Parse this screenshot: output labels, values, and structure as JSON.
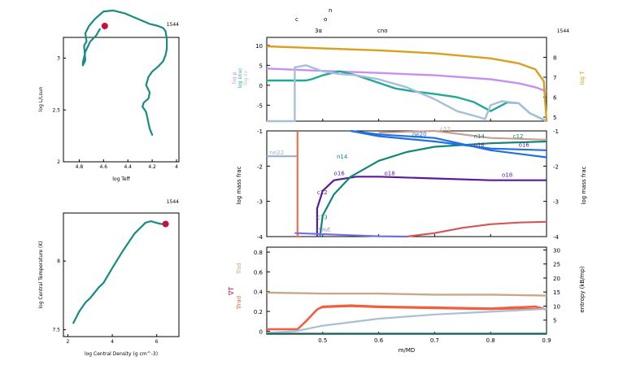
{
  "model_number": "1544",
  "colors": {
    "track": "#1a8a85",
    "marker": "#c8103a",
    "log_rho": "#c690f0",
    "log_eps_nuc": "#20a89a",
    "log_eps_nu": "#a8bfd8",
    "log_T": "#d8a020",
    "n14": "#12857a",
    "o16": "#5a1a9a",
    "ne22": "#9ab0d0",
    "c12": "#c8a090",
    "c13": "#d05858",
    "neut": "#7070e0",
    "blue_lines": "#2070e0",
    "h1": "#f07050",
    "grad_ad": "#c8a888",
    "grad_rad": "#f06040",
    "entropy": "#a8bfd8"
  },
  "top_labels": {
    "c": "c",
    "o": "o",
    "n": "n",
    "three_alpha": "3α",
    "cno": "cno"
  },
  "chart_data": [
    {
      "id": "hr",
      "type": "line",
      "title": "1544",
      "xlabel": "log Teff",
      "ylabel": "log L/Lsun",
      "xlim": [
        3.98,
        4.93
      ],
      "ylim": [
        2.0,
        3.2
      ],
      "xticks": [
        "4.8",
        "4.6",
        "4.4",
        "4.2",
        "4"
      ],
      "yticks": [
        "2",
        "2.5",
        "3",
        "3.5"
      ],
      "series": [
        {
          "x": [
            4.63,
            4.66,
            4.71,
            4.75,
            4.77,
            4.77,
            4.75,
            4.76,
            4.74,
            4.75,
            4.72,
            4.67,
            4.6,
            4.52,
            4.42,
            4.32,
            4.22,
            4.15,
            4.11,
            4.09,
            4.08,
            4.08,
            4.09,
            4.11,
            4.15,
            4.2,
            4.23,
            4.25,
            4.22,
            4.23,
            4.27,
            4.28,
            4.26,
            4.25,
            4.24,
            4.23,
            4.22,
            4.2
          ],
          "y": [
            3.28,
            3.22,
            3.16,
            3.06,
            2.96,
            2.93,
            2.98,
            3.12,
            3.16,
            3.24,
            3.31,
            3.38,
            3.45,
            3.46,
            3.43,
            3.38,
            3.33,
            3.31,
            3.29,
            3.26,
            3.18,
            3.09,
            3.03,
            2.97,
            2.92,
            2.87,
            2.82,
            2.74,
            2.67,
            2.61,
            2.57,
            2.53,
            2.5,
            2.48,
            2.43,
            2.37,
            2.32,
            2.26
          ]
        }
      ],
      "marker": {
        "x": 4.59,
        "y": 3.31
      }
    },
    {
      "id": "rhoT",
      "type": "line",
      "title": "1544",
      "xlabel": "log Central Density (g cm^-3)",
      "ylabel": "log Central Temperature (K)",
      "xlim": [
        1.8,
        7.0
      ],
      "ylim": [
        7.45,
        8.35
      ],
      "xticks": [
        "2",
        "4",
        "6"
      ],
      "yticks": [
        "7.5",
        "8"
      ],
      "series": [
        {
          "x": [
            2.25,
            2.5,
            2.8,
            3.0,
            3.2,
            3.4,
            3.6,
            4.0,
            4.5,
            5.0,
            5.5,
            5.75,
            5.95,
            6.2,
            6.4
          ],
          "y": [
            7.55,
            7.63,
            7.7,
            7.73,
            7.77,
            7.81,
            7.84,
            7.95,
            8.08,
            8.2,
            8.28,
            8.29,
            8.28,
            8.27,
            8.27
          ]
        }
      ],
      "marker": {
        "x": 6.4,
        "y": 8.27
      }
    },
    {
      "id": "profile_top",
      "type": "line",
      "title": "1544",
      "xlabel": "m/MD",
      "ylabel": "log ρ, log εnuc, log εν",
      "ylabel_right": "log T",
      "xlim": [
        0.4,
        0.9
      ],
      "ylim": [
        -9,
        12
      ],
      "ylim_right": [
        4.8,
        9.0
      ],
      "yticks": [
        "10",
        "5",
        "0",
        "-5"
      ],
      "yticks_right": [
        "8",
        "7",
        "6",
        "5"
      ],
      "legend": [
        "log ρ",
        "log εnuc",
        "log εν"
      ],
      "legend_right": "log T",
      "series": [
        {
          "name": "log ρ",
          "x": [
            0.4,
            0.5,
            0.6,
            0.7,
            0.8,
            0.85,
            0.88,
            0.9
          ],
          "y": [
            4.2,
            3.6,
            3.1,
            2.5,
            1.5,
            0.5,
            -0.5,
            -1.5
          ]
        },
        {
          "name": "log εnuc",
          "x": [
            0.4,
            0.44,
            0.47,
            0.48,
            0.5,
            0.53,
            0.56,
            0.6,
            0.63,
            0.66,
            0.7,
            0.74,
            0.77,
            0.8,
            0.83,
            0.85,
            0.87,
            0.9
          ],
          "y": [
            1.2,
            1.2,
            1.2,
            1.5,
            2.5,
            3.5,
            2.5,
            0.6,
            -0.8,
            -1.5,
            -2.2,
            -3.0,
            -4.2,
            -6.5,
            -4.3,
            -4.5,
            -7.0,
            -9.0
          ]
        },
        {
          "name": "log εν",
          "x": [
            0.4,
            0.45,
            0.45,
            0.47,
            0.48,
            0.5,
            0.53,
            0.56,
            0.6,
            0.65,
            0.7,
            0.74,
            0.78,
            0.79,
            0.8,
            0.82,
            0.85,
            0.87,
            0.9
          ],
          "y": [
            -9.0,
            -9.0,
            4.5,
            5.0,
            4.5,
            3.5,
            2.8,
            2.5,
            1.5,
            -0.5,
            -3.5,
            -6.5,
            -8.0,
            -8.5,
            -5.0,
            -4.0,
            -4.5,
            -7.0,
            -9.0
          ]
        },
        {
          "name": "log T",
          "x": [
            0.4,
            0.5,
            0.6,
            0.7,
            0.8,
            0.85,
            0.88,
            0.895,
            0.9
          ],
          "y": [
            8.55,
            8.45,
            8.35,
            8.2,
            7.95,
            7.7,
            7.4,
            6.8,
            4.8
          ]
        }
      ]
    },
    {
      "id": "abundances",
      "type": "line",
      "xlabel": "m/MD",
      "ylabel": "log mass frac",
      "ylabel_right": "log mass frac",
      "xlim": [
        0.4,
        0.9
      ],
      "ylim": [
        -4,
        -1
      ],
      "yticks": [
        "-1",
        "-2",
        "-3",
        "-4"
      ],
      "labels": [
        "ne22",
        "n14",
        "o16",
        "c12",
        "c13",
        "neut",
        "o18",
        "c12",
        "n14",
        "o16",
        "ne20",
        "c12",
        "o18",
        "o16"
      ],
      "series": [
        {
          "name": "ne22",
          "x": [
            0.4,
            0.455
          ],
          "y": [
            -1.72,
            -1.72
          ]
        },
        {
          "name": "h1",
          "x": [
            0.455,
            0.455,
            0.46
          ],
          "y": [
            -1.0,
            -4.0,
            -4.0
          ]
        },
        {
          "name": "o16",
          "x": [
            0.49,
            0.49,
            0.5,
            0.52,
            0.56,
            0.6,
            0.7,
            0.8,
            0.9
          ],
          "y": [
            -4.0,
            -3.2,
            -2.7,
            -2.4,
            -2.3,
            -2.3,
            -2.35,
            -2.4,
            -2.4
          ]
        },
        {
          "name": "n14",
          "x": [
            0.495,
            0.5,
            0.52,
            0.55,
            0.6,
            0.65,
            0.7,
            0.8,
            0.9
          ],
          "y": [
            -4.0,
            -3.4,
            -2.8,
            -2.3,
            -1.85,
            -1.6,
            -1.45,
            -1.35,
            -1.3
          ]
        },
        {
          "name": "c12",
          "x": [
            0.6,
            0.7,
            0.8,
            0.9
          ],
          "y": [
            -1.05,
            -1.0,
            -1.2,
            -1.25
          ]
        },
        {
          "name": "ne20",
          "x": [
            0.55,
            0.6,
            0.7,
            0.8,
            0.9
          ],
          "y": [
            -1.0,
            -1.1,
            -1.2,
            -1.55,
            -1.75
          ]
        },
        {
          "name": "o16 (upper)",
          "x": [
            0.55,
            0.6,
            0.7,
            0.8,
            0.9
          ],
          "y": [
            -1.0,
            -1.15,
            -1.3,
            -1.5,
            -1.55
          ]
        },
        {
          "name": "c13",
          "x": [
            0.65,
            0.7,
            0.75,
            0.8,
            0.85,
            0.9
          ],
          "y": [
            -4.0,
            -3.9,
            -3.75,
            -3.65,
            -3.6,
            -3.58
          ]
        },
        {
          "name": "neut",
          "x": [
            0.45,
            0.5,
            0.55,
            0.6,
            0.65
          ],
          "y": [
            -3.9,
            -3.93,
            -3.96,
            -3.99,
            -4.0
          ]
        }
      ]
    },
    {
      "id": "gradients",
      "type": "line",
      "xlabel": "m/MD",
      "ylabel": "∇T",
      "ylabel_secondary": [
        "∇ad",
        "∇rad"
      ],
      "ylabel_right": "entropy (kB/mp)",
      "xlim": [
        0.4,
        0.9
      ],
      "ylim": [
        -0.03,
        0.85
      ],
      "ylim_right": [
        0,
        31
      ],
      "yticks": [
        "0.8",
        "0.6",
        "0.4",
        "0.2",
        "0"
      ],
      "yticks_right": [
        "30",
        "25",
        "20",
        "15",
        "10",
        "5"
      ],
      "xticks": [
        "0.5",
        "0.6",
        "0.7",
        "0.8",
        "0.9"
      ],
      "series": [
        {
          "name": "∇ad",
          "x": [
            0.4,
            0.5,
            0.6,
            0.7,
            0.8,
            0.9
          ],
          "y": [
            0.39,
            0.38,
            0.38,
            0.37,
            0.37,
            0.36
          ]
        },
        {
          "name": "∇rad",
          "x": [
            0.4,
            0.455,
            0.47,
            0.49,
            0.5,
            0.55,
            0.6,
            0.7,
            0.8,
            0.88,
            0.9
          ],
          "y": [
            0.02,
            0.02,
            0.1,
            0.22,
            0.25,
            0.26,
            0.25,
            0.24,
            0.23,
            0.25,
            0.22
          ]
        },
        {
          "name": "∇T",
          "x": [
            0.4,
            0.455,
            0.47,
            0.49,
            0.5,
            0.55,
            0.6,
            0.7,
            0.8,
            0.88,
            0.9
          ],
          "y": [
            0.02,
            0.02,
            0.1,
            0.22,
            0.24,
            0.25,
            0.24,
            0.23,
            0.22,
            0.23,
            0.22
          ]
        },
        {
          "name": "entropy",
          "x": [
            0.4,
            0.45,
            0.5,
            0.6,
            0.7,
            0.8,
            0.9
          ],
          "y": [
            0.5,
            1.0,
            3.0,
            5.5,
            7.0,
            8.0,
            9.0
          ]
        }
      ]
    }
  ]
}
